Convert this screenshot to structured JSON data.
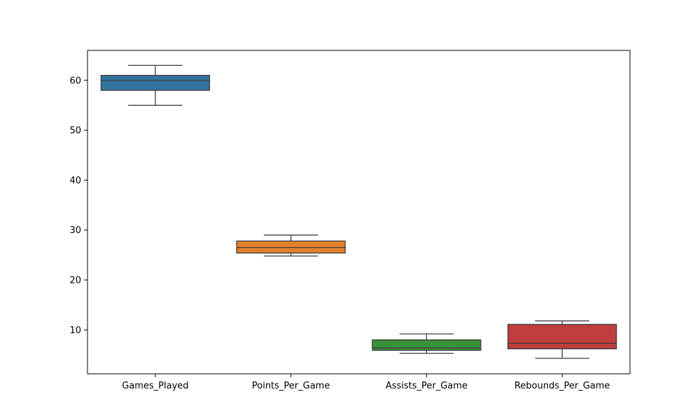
{
  "chart_data": {
    "type": "box",
    "title": "",
    "xlabel": "",
    "ylabel": "",
    "ylim": [
      1.2,
      66
    ],
    "yticks": [
      10,
      20,
      30,
      40,
      50,
      60
    ],
    "grid": false,
    "categories": [
      "Games_Played",
      "Points_Per_Game",
      "Assists_Per_Game",
      "Rebounds_Per_Game"
    ],
    "boxes": [
      {
        "category": "Games_Played",
        "whisker_low": 55,
        "q1": 58,
        "median": 60,
        "q3": 61,
        "whisker_high": 63,
        "color": "#3274a1"
      },
      {
        "category": "Points_Per_Game",
        "whisker_low": 24.8,
        "q1": 25.4,
        "median": 26.5,
        "q3": 27.8,
        "whisker_high": 29,
        "color": "#e1812c"
      },
      {
        "category": "Assists_Per_Game",
        "whisker_low": 5.3,
        "q1": 5.9,
        "median": 6.4,
        "q3": 8,
        "whisker_high": 9.2,
        "color": "#3a923a"
      },
      {
        "category": "Rebounds_Per_Game",
        "whisker_low": 4.3,
        "q1": 6.2,
        "median": 7.3,
        "q3": 11.1,
        "whisker_high": 11.8,
        "color": "#c03d3e"
      }
    ],
    "line_color": "#3d3d3d"
  }
}
